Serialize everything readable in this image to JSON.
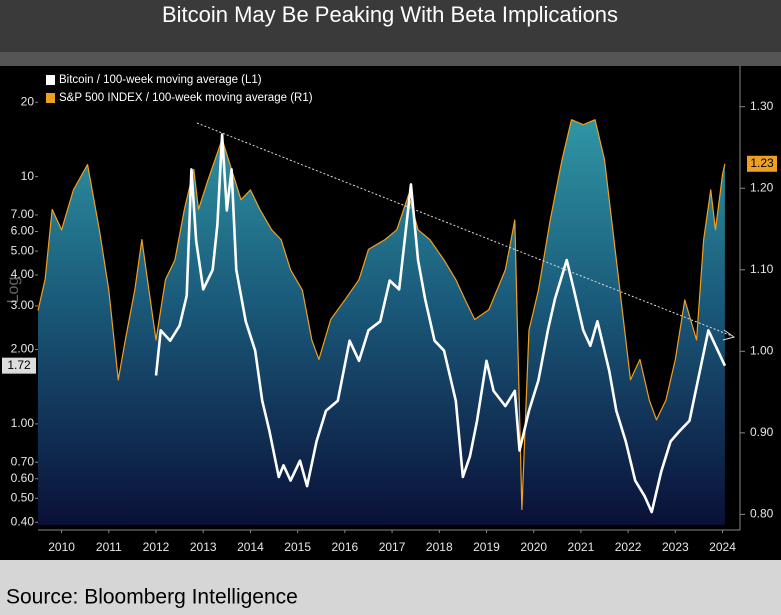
{
  "chart_data": {
    "type": "line",
    "title": "Bitcoin May Be Peaking With Beta Implications",
    "source": "Source: Bloomberg Intelligence",
    "ylabel": "Log",
    "log_y": true,
    "legend": "top-left",
    "xlim": [
      2010,
      2024.87
    ],
    "xticks": [
      {
        "value": 2010.5,
        "label": "2010"
      },
      {
        "value": 2011.5,
        "label": "2011"
      },
      {
        "value": 2012.5,
        "label": "2012"
      },
      {
        "value": 2013.5,
        "label": "2013"
      },
      {
        "value": 2014.5,
        "label": "2014"
      },
      {
        "value": 2015.5,
        "label": "2015"
      },
      {
        "value": 2016.5,
        "label": "2016"
      },
      {
        "value": 2017.5,
        "label": "2017"
      },
      {
        "value": 2018.5,
        "label": "2018"
      },
      {
        "value": 2019.5,
        "label": "2019"
      },
      {
        "value": 2020.5,
        "label": "2020"
      },
      {
        "value": 2021.5,
        "label": "2021"
      },
      {
        "value": 2022.5,
        "label": "2022"
      },
      {
        "value": 2023.5,
        "label": "2023"
      },
      {
        "value": 2024.5,
        "label": "2024"
      }
    ],
    "ylim": [
      0.39,
      27
    ],
    "yticks": [
      {
        "value": 0.4,
        "label": "0.40"
      },
      {
        "value": 0.5,
        "label": "0.50"
      },
      {
        "value": 0.6,
        "label": "0.60"
      },
      {
        "value": 0.7,
        "label": "0.70"
      },
      {
        "value": 1,
        "label": "1.00"
      },
      {
        "value": 2,
        "label": "2.00"
      },
      {
        "value": 3,
        "label": "3.00"
      },
      {
        "value": 4,
        "label": "4.00"
      },
      {
        "value": 5,
        "label": "5.00"
      },
      {
        "value": 6,
        "label": "6.00"
      },
      {
        "value": 7,
        "label": "7.00"
      },
      10,
      20
    ],
    "y2lim": [
      0.787,
      1.345
    ],
    "y2ticks": [
      {
        "value": 0.8,
        "label": "0.80"
      },
      {
        "value": 0.9,
        "label": "0.90"
      },
      {
        "value": 1.0,
        "label": "1.00"
      },
      {
        "value": 1.1,
        "label": "1.10"
      },
      {
        "value": 1.2,
        "label": "1.20"
      },
      {
        "value": 1.3,
        "label": "1.30"
      }
    ],
    "series": [
      {
        "name": "Bitcoin / 100-week moving average (L1)",
        "color": "#ffffff",
        "axis": "y",
        "value_label": "1.72",
        "x": [
          2012.5,
          2012.6,
          2012.8,
          2013.0,
          2013.15,
          2013.25,
          2013.35,
          2013.5,
          2013.7,
          2013.8,
          2013.9,
          2014.0,
          2014.1,
          2014.2,
          2014.4,
          2014.6,
          2014.75,
          2014.9,
          2015.1,
          2015.2,
          2015.35,
          2015.55,
          2015.7,
          2015.9,
          2016.1,
          2016.35,
          2016.6,
          2016.8,
          2017.0,
          2017.25,
          2017.45,
          2017.65,
          2017.9,
          2018.05,
          2018.2,
          2018.4,
          2018.6,
          2018.85,
          2019.0,
          2019.15,
          2019.3,
          2019.5,
          2019.65,
          2019.9,
          2020.1,
          2020.2,
          2020.4,
          2020.6,
          2020.8,
          2020.95,
          2021.2,
          2021.35,
          2021.55,
          2021.7,
          2021.85,
          2022.1,
          2022.25,
          2022.45,
          2022.65,
          2022.85,
          2023.0,
          2023.2,
          2023.4,
          2023.6,
          2023.8,
          2024.0,
          2024.2,
          2024.4,
          2024.55
        ],
        "values": [
          1.57,
          2.39,
          2.17,
          2.5,
          3.3,
          10.7,
          5.5,
          3.5,
          4.2,
          6.4,
          14.8,
          7.3,
          10.7,
          4.2,
          2.6,
          1.98,
          1.24,
          0.94,
          0.61,
          0.68,
          0.59,
          0.71,
          0.56,
          0.85,
          1.13,
          1.24,
          2.17,
          1.8,
          2.39,
          2.6,
          3.8,
          3.5,
          9.3,
          4.6,
          3.2,
          2.17,
          1.98,
          1.24,
          0.61,
          0.74,
          1.03,
          1.8,
          1.36,
          1.18,
          1.36,
          0.78,
          1.13,
          1.5,
          2.39,
          3.2,
          4.6,
          3.5,
          2.39,
          2.07,
          2.6,
          1.64,
          1.13,
          0.85,
          0.59,
          0.51,
          0.44,
          0.64,
          0.85,
          0.94,
          1.03,
          1.57,
          2.39,
          1.98,
          1.72
        ]
      },
      {
        "name": "S&P 500 INDEX / 100-week moving average (R1)",
        "color": "#f0a020",
        "axis": "y2",
        "value_label": "1.23",
        "x": [
          2010.0,
          2010.15,
          2010.3,
          2010.5,
          2010.75,
          2011.05,
          2011.3,
          2011.5,
          2011.7,
          2011.85,
          2012.05,
          2012.2,
          2012.35,
          2012.5,
          2012.7,
          2012.9,
          2013.1,
          2013.3,
          2013.4,
          2013.6,
          2013.9,
          2014.1,
          2014.3,
          2014.5,
          2014.7,
          2014.95,
          2015.15,
          2015.35,
          2015.6,
          2015.8,
          2015.95,
          2016.2,
          2016.5,
          2016.8,
          2017.0,
          2017.35,
          2017.6,
          2017.85,
          2018.05,
          2018.3,
          2018.6,
          2018.85,
          2019.05,
          2019.25,
          2019.55,
          2019.9,
          2020.1,
          2020.25,
          2020.4,
          2020.6,
          2020.85,
          2021.1,
          2021.3,
          2021.55,
          2021.8,
          2022.0,
          2022.2,
          2022.4,
          2022.55,
          2022.75,
          2022.95,
          2023.1,
          2023.3,
          2023.5,
          2023.7,
          2023.95,
          2024.1,
          2024.25,
          2024.35,
          2024.5,
          2024.55
        ],
        "values": [
          1.05,
          1.088,
          1.174,
          1.149,
          1.198,
          1.229,
          1.149,
          1.075,
          0.965,
          1.014,
          1.075,
          1.137,
          1.075,
          1.014,
          1.088,
          1.112,
          1.174,
          1.223,
          1.174,
          1.21,
          1.26,
          1.223,
          1.186,
          1.198,
          1.174,
          1.149,
          1.137,
          1.1,
          1.075,
          1.014,
          0.99,
          1.039,
          1.063,
          1.088,
          1.125,
          1.137,
          1.149,
          1.192,
          1.149,
          1.137,
          1.112,
          1.088,
          1.063,
          1.039,
          1.051,
          1.1,
          1.161,
          0.806,
          1.026,
          1.075,
          1.161,
          1.235,
          1.284,
          1.278,
          1.284,
          1.235,
          1.137,
          1.039,
          0.965,
          0.99,
          0.94,
          0.916,
          0.94,
          0.99,
          1.063,
          1.014,
          1.137,
          1.198,
          1.149,
          1.217,
          1.23
        ]
      }
    ]
  }
}
